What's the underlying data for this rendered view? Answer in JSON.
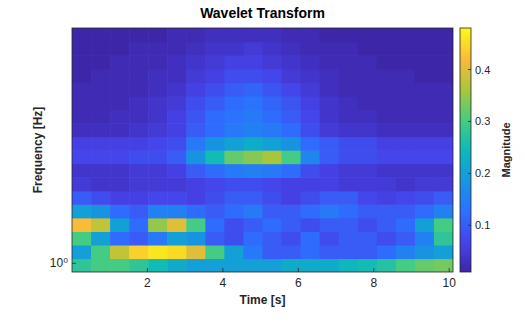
{
  "chart_data": {
    "type": "heatmap",
    "title": "Wavelet Transform",
    "xlabel": "Time [s]",
    "ylabel": "Frequency [Hz]",
    "log": "y",
    "xlim": [
      0,
      10.1
    ],
    "ylim": [
      0.85,
      80
    ],
    "xticks": [
      2,
      4,
      6,
      8,
      10
    ],
    "yticks": [
      {
        "value": 1,
        "label": "10⁰"
      }
    ],
    "x": [
      0,
      0.505,
      1.01,
      1.515,
      2.02,
      2.525,
      3.03,
      3.535,
      4.04,
      4.545,
      5.05,
      5.555,
      6.06,
      6.565,
      7.07,
      7.575,
      8.08,
      8.585,
      9.09,
      9.595,
      10.1
    ],
    "y": [
      0.85,
      1.094,
      1.408,
      1.812,
      2.332,
      3.0,
      3.862,
      4.97,
      6.4,
      8.23,
      10.6,
      13.6,
      17.5,
      22.6,
      29.0,
      37.4,
      48.1,
      61.9,
      80
    ],
    "cells": [
      [
        0.28,
        0.3,
        0.3,
        0.28,
        0.25,
        0.22,
        0.2,
        0.2,
        0.2,
        0.2,
        0.2,
        0.22,
        0.22,
        0.22,
        0.24,
        0.25,
        0.27,
        0.3,
        0.32,
        0.33
      ],
      [
        0.2,
        0.3,
        0.38,
        0.44,
        0.46,
        0.45,
        0.4,
        0.3,
        0.2,
        0.14,
        0.1,
        0.1,
        0.12,
        0.1,
        0.1,
        0.1,
        0.12,
        0.15,
        0.18,
        0.2
      ],
      [
        0.3,
        0.2,
        0.12,
        0.1,
        0.14,
        0.2,
        0.18,
        0.1,
        0.08,
        0.12,
        0.1,
        0.08,
        0.12,
        0.08,
        0.1,
        0.1,
        0.08,
        0.1,
        0.15,
        0.28
      ],
      [
        0.42,
        0.38,
        0.2,
        0.12,
        0.35,
        0.4,
        0.3,
        0.12,
        0.08,
        0.1,
        0.12,
        0.1,
        0.08,
        0.1,
        0.1,
        0.08,
        0.1,
        0.12,
        0.2,
        0.3
      ],
      [
        0.2,
        0.18,
        0.12,
        0.1,
        0.15,
        0.15,
        0.12,
        0.1,
        0.12,
        0.14,
        0.1,
        0.1,
        0.12,
        0.14,
        0.12,
        0.1,
        0.1,
        0.1,
        0.12,
        0.15
      ],
      [
        0.1,
        0.08,
        0.06,
        0.06,
        0.07,
        0.07,
        0.06,
        0.08,
        0.1,
        0.1,
        0.08,
        0.06,
        0.08,
        0.1,
        0.1,
        0.07,
        0.06,
        0.07,
        0.08,
        0.1
      ],
      [
        0.05,
        0.04,
        0.04,
        0.05,
        0.05,
        0.05,
        0.06,
        0.07,
        0.08,
        0.08,
        0.07,
        0.06,
        0.06,
        0.06,
        0.05,
        0.05,
        0.05,
        0.04,
        0.05,
        0.05
      ],
      [
        0.04,
        0.04,
        0.04,
        0.05,
        0.05,
        0.06,
        0.1,
        0.12,
        0.14,
        0.15,
        0.14,
        0.12,
        0.08,
        0.06,
        0.05,
        0.05,
        0.04,
        0.04,
        0.04,
        0.04
      ],
      [
        0.07,
        0.07,
        0.07,
        0.08,
        0.08,
        0.1,
        0.18,
        0.25,
        0.32,
        0.34,
        0.36,
        0.3,
        0.16,
        0.1,
        0.08,
        0.08,
        0.07,
        0.07,
        0.07,
        0.07
      ],
      [
        0.06,
        0.06,
        0.06,
        0.06,
        0.07,
        0.08,
        0.14,
        0.18,
        0.2,
        0.22,
        0.2,
        0.18,
        0.12,
        0.1,
        0.08,
        0.08,
        0.06,
        0.06,
        0.06,
        0.06
      ],
      [
        0.03,
        0.03,
        0.03,
        0.04,
        0.05,
        0.06,
        0.1,
        0.12,
        0.14,
        0.15,
        0.14,
        0.12,
        0.08,
        0.05,
        0.04,
        0.04,
        0.03,
        0.03,
        0.03,
        0.03
      ],
      [
        0.02,
        0.02,
        0.03,
        0.03,
        0.04,
        0.06,
        0.09,
        0.12,
        0.13,
        0.14,
        0.12,
        0.1,
        0.07,
        0.04,
        0.03,
        0.03,
        0.02,
        0.02,
        0.02,
        0.02
      ],
      [
        0.02,
        0.02,
        0.02,
        0.03,
        0.04,
        0.05,
        0.08,
        0.1,
        0.12,
        0.13,
        0.11,
        0.09,
        0.06,
        0.04,
        0.03,
        0.02,
        0.02,
        0.02,
        0.02,
        0.02
      ],
      [
        0.02,
        0.02,
        0.02,
        0.02,
        0.03,
        0.04,
        0.06,
        0.08,
        0.1,
        0.11,
        0.09,
        0.07,
        0.05,
        0.03,
        0.02,
        0.02,
        0.02,
        0.02,
        0.02,
        0.02
      ],
      [
        0.01,
        0.02,
        0.02,
        0.02,
        0.03,
        0.03,
        0.05,
        0.06,
        0.08,
        0.08,
        0.07,
        0.05,
        0.04,
        0.03,
        0.02,
        0.02,
        0.02,
        0.02,
        0.01,
        0.01
      ],
      [
        0.01,
        0.01,
        0.02,
        0.02,
        0.02,
        0.03,
        0.04,
        0.05,
        0.06,
        0.06,
        0.05,
        0.04,
        0.03,
        0.02,
        0.02,
        0.02,
        0.01,
        0.01,
        0.01,
        0.01
      ],
      [
        0.01,
        0.01,
        0.01,
        0.02,
        0.02,
        0.02,
        0.03,
        0.04,
        0.04,
        0.05,
        0.04,
        0.03,
        0.02,
        0.02,
        0.02,
        0.01,
        0.01,
        0.01,
        0.01,
        0.01
      ],
      [
        0.01,
        0.01,
        0.01,
        0.01,
        0.01,
        0.02,
        0.02,
        0.03,
        0.03,
        0.03,
        0.03,
        0.02,
        0.02,
        0.01,
        0.01,
        0.01,
        0.01,
        0.01,
        0.01,
        0.01
      ]
    ],
    "colorbar": {
      "label": "Magnitude",
      "range": [
        0.01,
        0.48
      ],
      "ticks": [
        0.1,
        0.2,
        0.3,
        0.4
      ]
    }
  }
}
